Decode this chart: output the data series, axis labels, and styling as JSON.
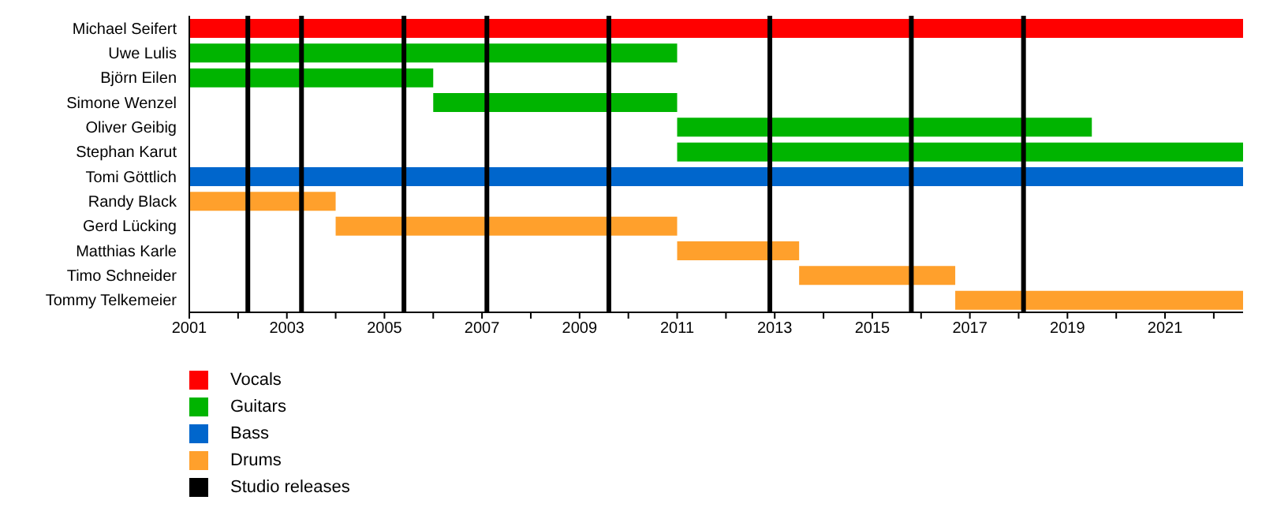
{
  "chart_data": {
    "type": "bar",
    "orientation": "horizontal",
    "categories": [
      "Michael Seifert",
      "Uwe Lulis",
      "Björn Eilen",
      "Simone Wenzel",
      "Oliver Geibig",
      "Stephan Karut",
      "Tomi Göttlich",
      "Randy Black",
      "Gerd Lücking",
      "Matthias Karle",
      "Timo Schneider",
      "Tommy Telkemeier"
    ],
    "series": [
      {
        "name": "Vocals",
        "color": "#ff0000",
        "base": [
          2001,
          null,
          null,
          null,
          null,
          null,
          null,
          null,
          null,
          null,
          null,
          null
        ],
        "values": [
          21.6,
          null,
          null,
          null,
          null,
          null,
          null,
          null,
          null,
          null,
          null,
          null
        ]
      },
      {
        "name": "Guitars",
        "color": "#00b400",
        "base": [
          null,
          2001,
          2001,
          2006,
          2011,
          2011,
          null,
          null,
          null,
          null,
          null,
          null
        ],
        "values": [
          null,
          10,
          5,
          5,
          8.5,
          11.6,
          null,
          null,
          null,
          null,
          null,
          null
        ]
      },
      {
        "name": "Bass",
        "color": "#0066cc",
        "base": [
          null,
          null,
          null,
          null,
          null,
          null,
          2001,
          null,
          null,
          null,
          null,
          null
        ],
        "values": [
          null,
          null,
          null,
          null,
          null,
          null,
          21.6,
          null,
          null,
          null,
          null,
          null
        ]
      },
      {
        "name": "Drums",
        "color": "#ffa02c",
        "base": [
          null,
          null,
          null,
          null,
          null,
          null,
          null,
          2001,
          2004,
          2011,
          2013.5,
          2016.7
        ],
        "values": [
          null,
          null,
          null,
          null,
          null,
          null,
          null,
          3,
          7,
          2.5,
          3.2,
          5.9
        ]
      }
    ],
    "xlim": [
      2001,
      2022.6
    ],
    "xticks": [
      2001,
      {
        "value": 2002,
        "label": null
      },
      2003,
      {
        "value": 2004,
        "label": null
      },
      2005,
      {
        "value": 2006,
        "label": null
      },
      2007,
      {
        "value": 2008,
        "label": null
      },
      2009,
      {
        "value": 2010,
        "label": null
      },
      2011,
      {
        "value": 2012,
        "label": null
      },
      2013,
      {
        "value": 2014,
        "label": null
      },
      2015,
      {
        "value": 2016,
        "label": null
      },
      2017,
      {
        "value": 2018,
        "label": null
      },
      2019,
      {
        "value": 2020,
        "label": null
      },
      2021,
      {
        "value": 2022,
        "label": null
      }
    ],
    "ref_lines": [
      {
        "axis": "x",
        "value": 2002.2,
        "color": "#000000"
      },
      {
        "axis": "x",
        "value": 2003.3,
        "color": "#000000"
      },
      {
        "axis": "x",
        "value": 2005.4,
        "color": "#000000"
      },
      {
        "axis": "x",
        "value": 2007.1,
        "color": "#000000"
      },
      {
        "axis": "x",
        "value": 2009.6,
        "color": "#000000"
      },
      {
        "axis": "x",
        "value": 2012.9,
        "color": "#000000"
      },
      {
        "axis": "x",
        "value": 2015.8,
        "color": "#000000"
      },
      {
        "axis": "x",
        "value": 2018.1,
        "color": "#000000"
      }
    ],
    "annotations": [
      "Studio releases"
    ],
    "legend": "bottom left"
  }
}
